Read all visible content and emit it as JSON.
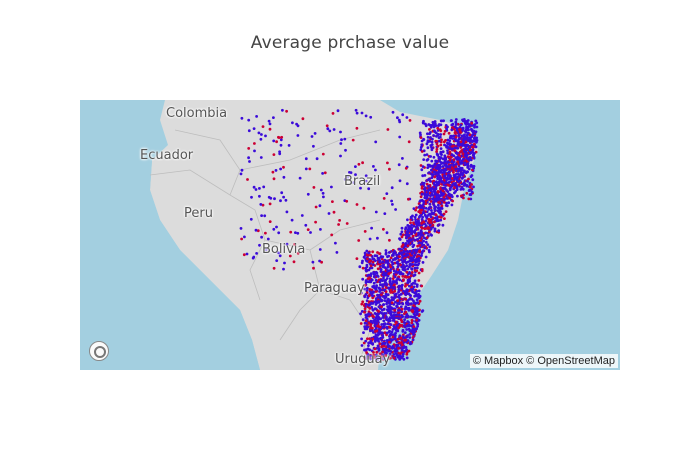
{
  "title": "Average prchase value",
  "map": {
    "labels": {
      "colombia": "Colombia",
      "ecuador": "Ecuador",
      "peru": "Peru",
      "bolivia": "Bolivia",
      "brazil": "Brazil",
      "paraguay": "Paraguay",
      "uruguay": "Uruguay"
    },
    "attribution": "© Mapbox © OpenStreetMap",
    "compass_icon": "compass-icon",
    "colors": {
      "ocean": "#a3cfe0",
      "land": "#dcdcdc",
      "marker_low": "#3b0bd9",
      "marker_high": "#cc0033"
    }
  }
}
